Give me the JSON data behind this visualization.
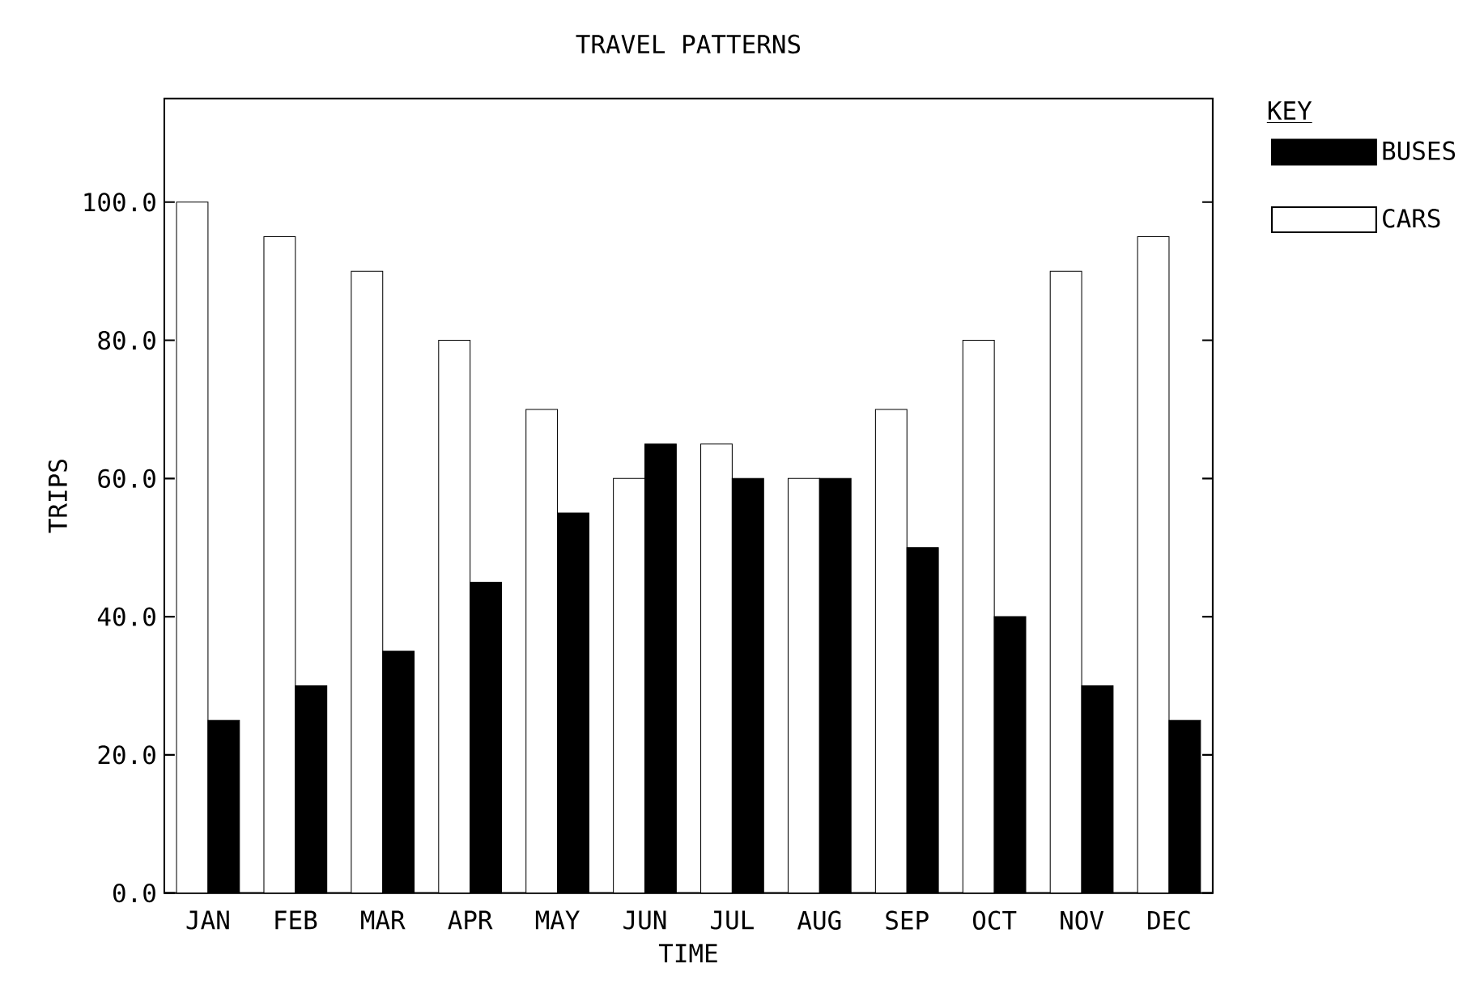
{
  "chart_data": {
    "type": "bar",
    "title": "TRAVEL PATTERNS",
    "xlabel": "TIME",
    "ylabel": "TRIPS",
    "legend_title": "KEY",
    "legend": "right",
    "categories": [
      "JAN",
      "FEB",
      "MAR",
      "APR",
      "MAY",
      "JUN",
      "JUL",
      "AUG",
      "SEP",
      "OCT",
      "NOV",
      "DEC"
    ],
    "series": [
      {
        "name": "CARS",
        "color": "#ffffff",
        "values": [
          100,
          95,
          90,
          80,
          70,
          60,
          65,
          60,
          70,
          80,
          90,
          95
        ]
      },
      {
        "name": "BUSES",
        "color": "#000000",
        "values": [
          25,
          30,
          35,
          45,
          55,
          65,
          60,
          60,
          50,
          40,
          30,
          25
        ]
      }
    ],
    "ylim": [
      0,
      115
    ],
    "yticks": [
      {
        "value": 0,
        "label": "0.0"
      },
      {
        "value": 20,
        "label": "20.0"
      },
      {
        "value": 40,
        "label": "40.0"
      },
      {
        "value": 60,
        "label": "60.0"
      },
      {
        "value": 80,
        "label": "80.0"
      },
      {
        "value": 100,
        "label": "100.0"
      }
    ]
  }
}
